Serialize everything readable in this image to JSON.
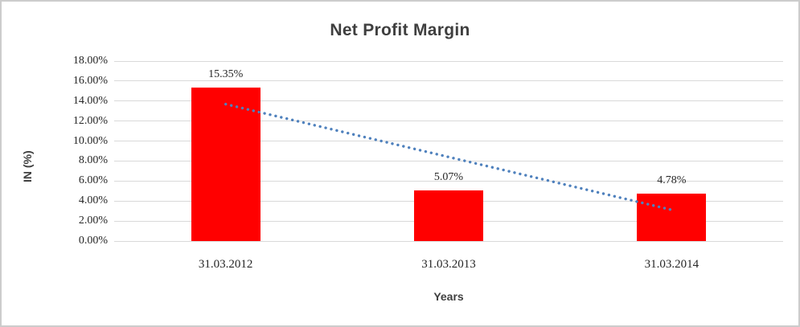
{
  "chart_data": {
    "type": "bar",
    "title": "Net Profit Margin",
    "categories": [
      "31.03.2012",
      "31.03.2013",
      "31.03.2014"
    ],
    "values": [
      15.35,
      5.07,
      4.78
    ],
    "value_labels": [
      "15.35%",
      "5.07%",
      "4.78%"
    ],
    "xlabel": "Years",
    "ylabel": "IN (%)",
    "ylim": [
      0,
      18
    ],
    "ytick_step": 2,
    "ytick_labels": [
      "0.00%",
      "2.00%",
      "4.00%",
      "6.00%",
      "8.00%",
      "10.00%",
      "12.00%",
      "14.00%",
      "16.00%",
      "18.00%"
    ],
    "grid": true,
    "legend": false,
    "colors": {
      "bar": "#FF0000",
      "trendline": "#4F81BD",
      "gridline": "#D9D9D9",
      "title_text": "#3F3F3F",
      "tick_text": "#262626"
    },
    "trendline": {
      "shape": "linear",
      "style": "dotted",
      "start_value": 13.69,
      "end_value": 3.12
    }
  }
}
